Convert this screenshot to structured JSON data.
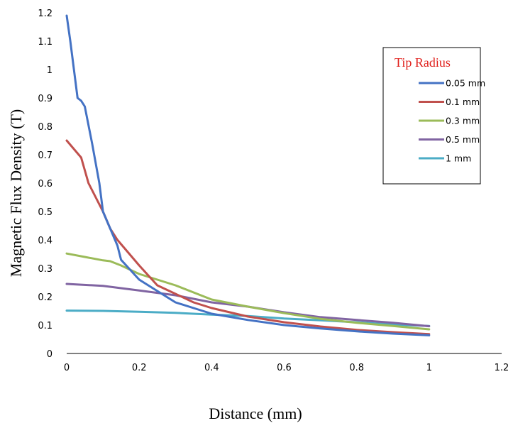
{
  "chart_data": {
    "type": "line",
    "title": "",
    "xlabel": "Distance (mm)",
    "ylabel": "Magnetic Flux Density (T)",
    "xlim": [
      0,
      1.2
    ],
    "ylim": [
      0,
      1.2
    ],
    "x_ticks": [
      "0",
      "0.2",
      "0.4",
      "0.6",
      "0.8",
      "1",
      "1.2"
    ],
    "y_ticks": [
      "0",
      "0.1",
      "0.2",
      "0.3",
      "0.4",
      "0.5",
      "0.6",
      "0.7",
      "0.8",
      "0.9",
      "1",
      "1.1",
      "1.2"
    ],
    "grid": false,
    "legend": {
      "title": "Tip Radius",
      "position": "right"
    },
    "series": [
      {
        "name": "0.05 mm",
        "color": "#4472c4",
        "points": [
          [
            0,
            1.19
          ],
          [
            0.01,
            1.1
          ],
          [
            0.02,
            1.0
          ],
          [
            0.03,
            0.9
          ],
          [
            0.04,
            0.89
          ],
          [
            0.05,
            0.87
          ],
          [
            0.07,
            0.74
          ],
          [
            0.09,
            0.6
          ],
          [
            0.1,
            0.5
          ],
          [
            0.12,
            0.44
          ],
          [
            0.14,
            0.38
          ],
          [
            0.15,
            0.33
          ],
          [
            0.2,
            0.26
          ],
          [
            0.25,
            0.22
          ],
          [
            0.3,
            0.18
          ],
          [
            0.35,
            0.16
          ],
          [
            0.4,
            0.14
          ],
          [
            0.5,
            0.118
          ],
          [
            0.6,
            0.1
          ],
          [
            0.7,
            0.088
          ],
          [
            0.8,
            0.078
          ],
          [
            0.9,
            0.07
          ],
          [
            1.0,
            0.064
          ]
        ]
      },
      {
        "name": "0.1 mm",
        "color": "#c0504d",
        "points": [
          [
            0,
            0.75
          ],
          [
            0.02,
            0.72
          ],
          [
            0.04,
            0.69
          ],
          [
            0.06,
            0.6
          ],
          [
            0.08,
            0.55
          ],
          [
            0.1,
            0.5
          ],
          [
            0.12,
            0.44
          ],
          [
            0.14,
            0.4
          ],
          [
            0.2,
            0.31
          ],
          [
            0.25,
            0.24
          ],
          [
            0.3,
            0.21
          ],
          [
            0.35,
            0.18
          ],
          [
            0.4,
            0.16
          ],
          [
            0.5,
            0.13
          ],
          [
            0.6,
            0.11
          ],
          [
            0.7,
            0.095
          ],
          [
            0.8,
            0.083
          ],
          [
            0.9,
            0.075
          ],
          [
            1.0,
            0.068
          ]
        ]
      },
      {
        "name": "0.3 mm",
        "color": "#9bbb59",
        "points": [
          [
            0,
            0.352
          ],
          [
            0.05,
            0.34
          ],
          [
            0.1,
            0.328
          ],
          [
            0.12,
            0.325
          ],
          [
            0.15,
            0.31
          ],
          [
            0.2,
            0.28
          ],
          [
            0.3,
            0.24
          ],
          [
            0.4,
            0.19
          ],
          [
            0.5,
            0.165
          ],
          [
            0.6,
            0.142
          ],
          [
            0.7,
            0.122
          ],
          [
            0.8,
            0.108
          ],
          [
            0.9,
            0.097
          ],
          [
            1.0,
            0.085
          ]
        ]
      },
      {
        "name": "0.5 mm",
        "color": "#8064a2",
        "points": [
          [
            0,
            0.245
          ],
          [
            0.1,
            0.238
          ],
          [
            0.2,
            0.222
          ],
          [
            0.3,
            0.205
          ],
          [
            0.4,
            0.18
          ],
          [
            0.5,
            0.165
          ],
          [
            0.6,
            0.145
          ],
          [
            0.7,
            0.128
          ],
          [
            0.8,
            0.118
          ],
          [
            0.9,
            0.108
          ],
          [
            1.0,
            0.096
          ]
        ]
      },
      {
        "name": "1 mm",
        "color": "#4bacc6",
        "points": [
          [
            0,
            0.151
          ],
          [
            0.1,
            0.15
          ],
          [
            0.2,
            0.147
          ],
          [
            0.3,
            0.143
          ],
          [
            0.4,
            0.137
          ],
          [
            0.5,
            0.132
          ],
          [
            0.6,
            0.123
          ],
          [
            0.7,
            0.117
          ],
          [
            0.8,
            0.11
          ],
          [
            0.9,
            0.102
          ],
          [
            1.0,
            0.097
          ]
        ]
      }
    ]
  }
}
